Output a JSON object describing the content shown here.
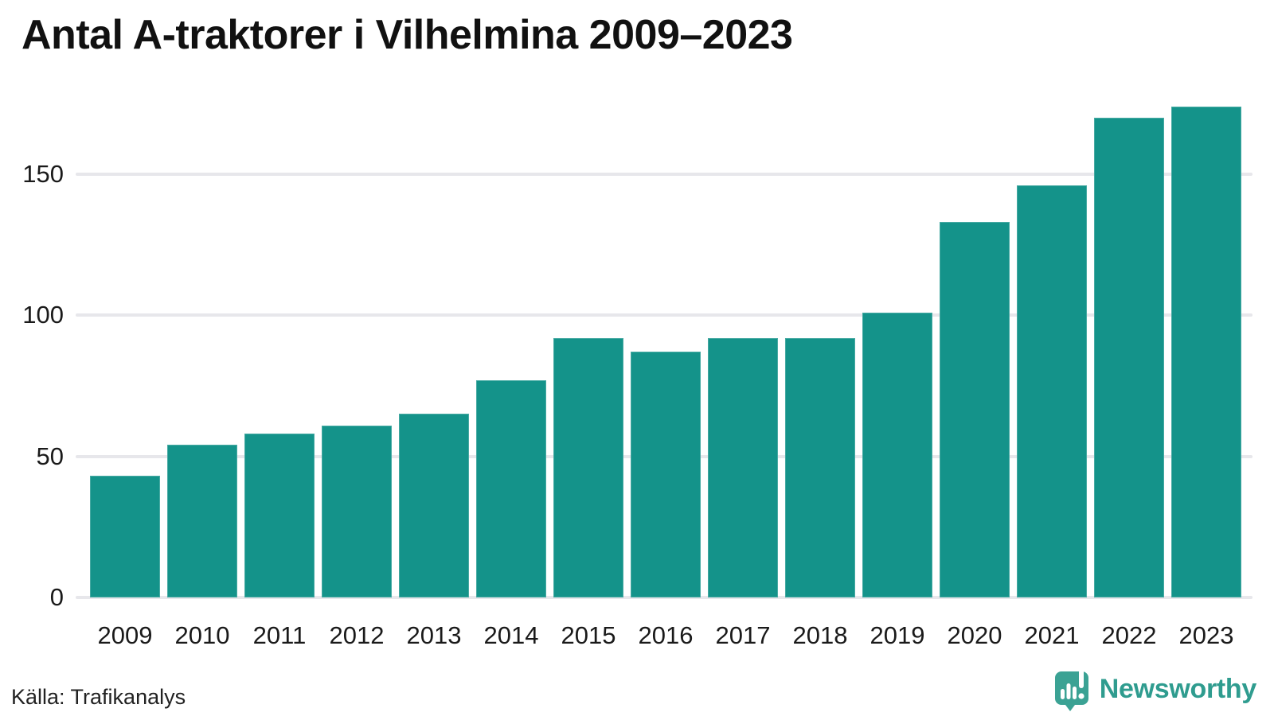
{
  "title": "Antal A-traktorer i Vilhelmina 2009–2023",
  "footer": {
    "source": "Källa: Trafikanalys",
    "brand_name": "Newsworthy"
  },
  "colors": {
    "bar": "#14938A",
    "grid": "#E7E7EB",
    "text": "#1A1A1A",
    "brand_text": "#2F9C8F",
    "brand_icon": "#3BA294"
  },
  "chart_data": {
    "type": "bar",
    "title": "Antal A-traktorer i Vilhelmina 2009–2023",
    "xlabel": "",
    "ylabel": "",
    "categories": [
      "2009",
      "2010",
      "2011",
      "2012",
      "2013",
      "2014",
      "2015",
      "2016",
      "2017",
      "2018",
      "2019",
      "2020",
      "2021",
      "2022",
      "2023"
    ],
    "values": [
      43,
      54,
      58,
      61,
      65,
      77,
      92,
      87,
      92,
      92,
      101,
      133,
      146,
      170,
      174
    ],
    "yticks": [
      0,
      50,
      100,
      150
    ],
    "ylim": [
      0,
      175
    ],
    "grid": true,
    "legend": false,
    "bar_color": "#14938A"
  }
}
